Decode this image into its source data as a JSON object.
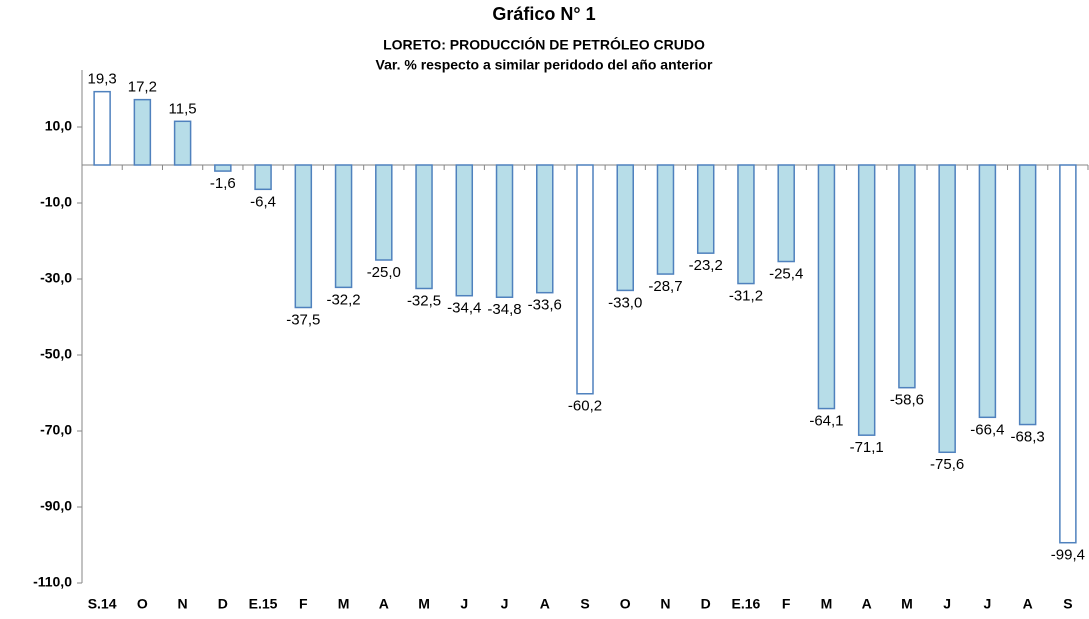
{
  "chart_data": {
    "type": "bar",
    "title": "Gráfico N° 1",
    "subtitle": [
      "LORETO: PRODUCCIÓN DE PETRÓLEO CRUDO",
      "Var. % respecto a similar peridodo del año anterior"
    ],
    "categories": [
      "S.14",
      "O",
      "N",
      "D",
      "E.15",
      "F",
      "M",
      "A",
      "M",
      "J",
      "J",
      "A",
      "S",
      "O",
      "N",
      "D",
      "E.16",
      "F",
      "M",
      "A",
      "M",
      "J",
      "J",
      "A",
      "S"
    ],
    "values": [
      19.3,
      17.2,
      11.5,
      -1.6,
      -6.4,
      -37.5,
      -32.2,
      -25.0,
      -32.5,
      -34.4,
      -34.8,
      -33.6,
      -60.2,
      -33.0,
      -28.7,
      -23.2,
      -31.2,
      -25.4,
      -64.1,
      -71.1,
      -58.6,
      -75.6,
      -66.4,
      -68.3,
      -99.4
    ],
    "value_labels": [
      "19,3",
      "17,2",
      "11,5",
      "-1,6",
      "-6,4",
      "-37,5",
      "-32,2",
      "-25,0",
      "-32,5",
      "-34,4",
      "-34,8",
      "-33,6",
      "-60,2",
      "-33,0",
      "-28,7",
      "-23,2",
      "-31,2",
      "-25,4",
      "-64,1",
      "-71,1",
      "-58,6",
      "-75,6",
      "-66,4",
      "-68,3",
      "-99,4"
    ],
    "colors": [
      "#ffffff",
      "#b7dde8",
      "#b7dde8",
      "#b7dde8",
      "#b7dde8",
      "#b7dde8",
      "#b7dde8",
      "#b7dde8",
      "#b7dde8",
      "#b7dde8",
      "#b7dde8",
      "#b7dde8",
      "#ffffff",
      "#b7dde8",
      "#b7dde8",
      "#b7dde8",
      "#b7dde8",
      "#b7dde8",
      "#b7dde8",
      "#b7dde8",
      "#b7dde8",
      "#b7dde8",
      "#b7dde8",
      "#b7dde8",
      "#ffffff"
    ],
    "edge_color": "#4f81bd",
    "ylim": [
      -110,
      25
    ],
    "yticks": [
      {
        "value": 10,
        "label": "10,0"
      },
      {
        "value": -10,
        "label": "-10,0"
      },
      {
        "value": -30,
        "label": "-30,0"
      },
      {
        "value": -50,
        "label": "-50,0"
      },
      {
        "value": -70,
        "label": "-70,0"
      },
      {
        "value": -90,
        "label": "-90,0"
      },
      {
        "value": -110,
        "label": "-110,0"
      }
    ],
    "grid": false
  }
}
